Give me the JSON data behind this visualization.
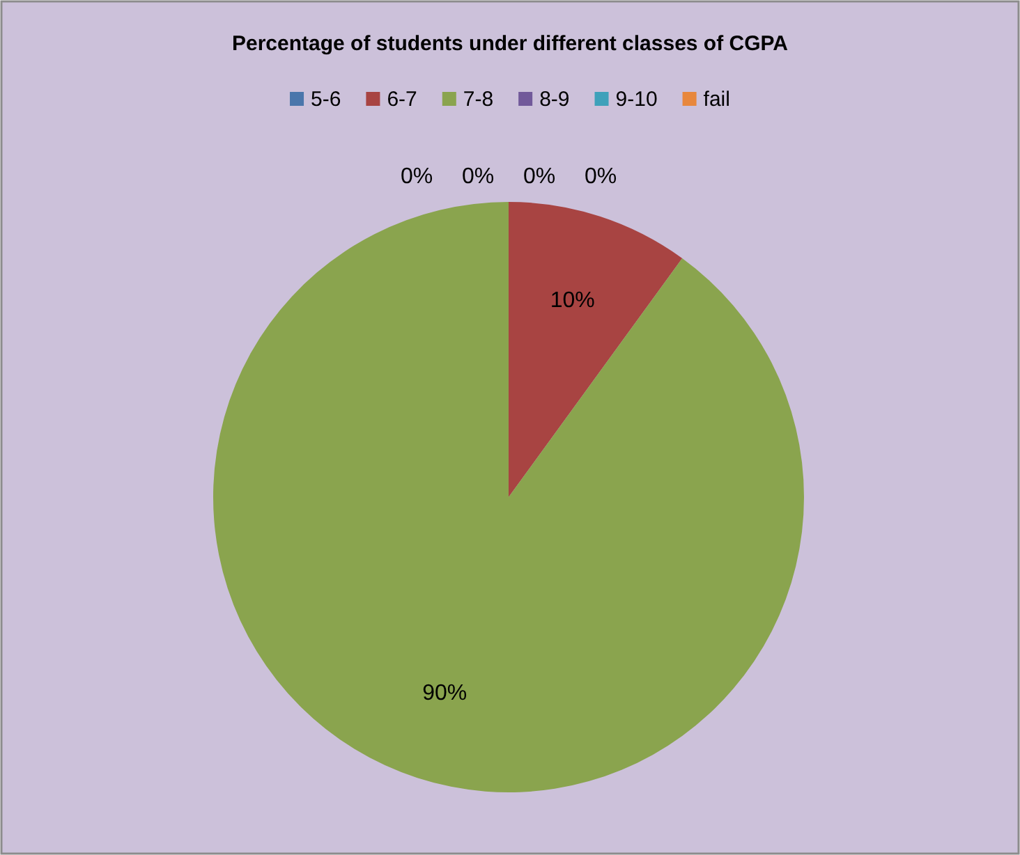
{
  "chart_data": {
    "type": "pie",
    "title": "Percentage of students under different classes of CGPA",
    "categories": [
      "5-6",
      "6-7",
      "7-8",
      "8-9",
      "9-10",
      "fail"
    ],
    "values": [
      0,
      10,
      90,
      0,
      0,
      0
    ],
    "value_labels": [
      "0%",
      "10%",
      "90%",
      "0%",
      "0%",
      "0%"
    ],
    "colors": [
      "#4a76ab",
      "#a84442",
      "#8aa44e",
      "#71599a",
      "#3ea1ba",
      "#e8873c"
    ],
    "legend": "top"
  }
}
